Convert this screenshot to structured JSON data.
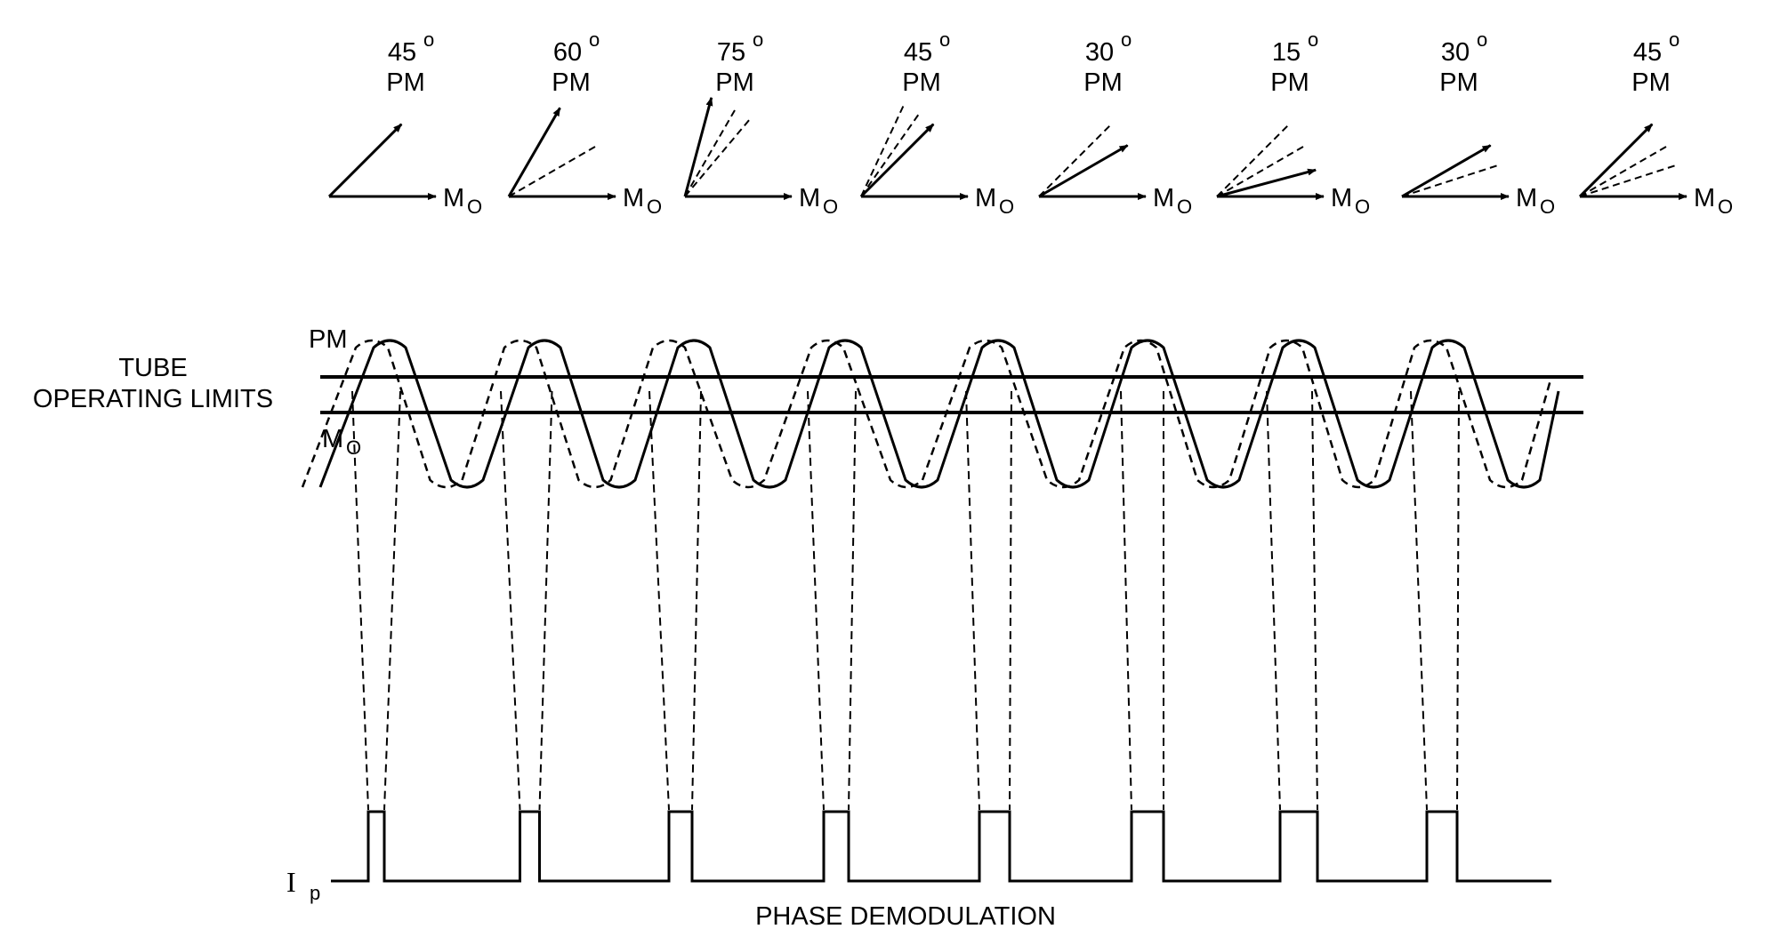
{
  "diagram": {
    "phasors": [
      {
        "angle": "45",
        "pm": "PM",
        "mo": "M",
        "mo_sub": "O"
      },
      {
        "angle": "60",
        "pm": "PM",
        "mo": "M",
        "mo_sub": "O"
      },
      {
        "angle": "75",
        "pm": "PM",
        "mo": "M",
        "mo_sub": "O"
      },
      {
        "angle": "45",
        "pm": "PM",
        "mo": "M",
        "mo_sub": "O"
      },
      {
        "angle": "30",
        "pm": "PM",
        "mo": "M",
        "mo_sub": "O"
      },
      {
        "angle": "15",
        "pm": "PM",
        "mo": "M",
        "mo_sub": "O"
      },
      {
        "angle": "30",
        "pm": "PM",
        "mo": "M",
        "mo_sub": "O"
      },
      {
        "angle": "45",
        "pm": "PM",
        "mo": "M",
        "mo_sub": "O"
      }
    ],
    "degree_symbol": "o",
    "waveform_pm_label": "PM",
    "waveform_mo_label": "M",
    "waveform_mo_sub": "O",
    "tube_label_line1": "TUBE",
    "tube_label_line2": "OPERATING LIMITS",
    "current_label": "I",
    "current_sub": "p",
    "caption": "PHASE DEMODULATION"
  }
}
